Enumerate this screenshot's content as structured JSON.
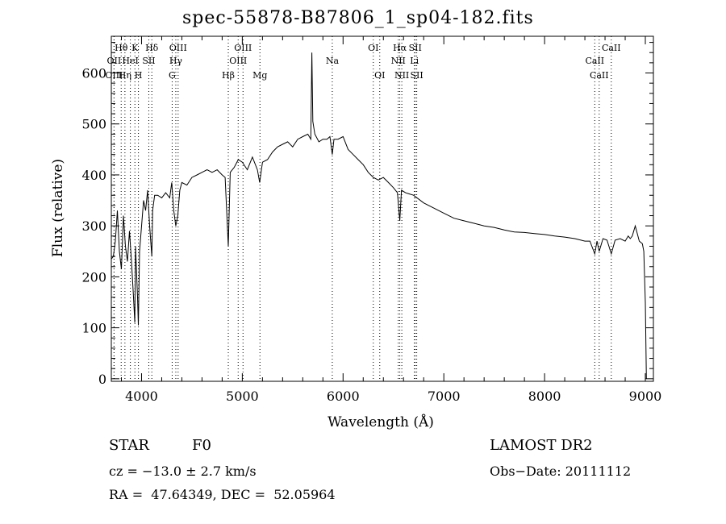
{
  "chart_data": {
    "type": "line",
    "title": "spec-55878-B87806_1_sp04-182.fits",
    "xlabel": "Wavelength (Å)",
    "ylabel": "Flux (relative)",
    "xlim": [
      3700,
      9080
    ],
    "ylim": [
      -5,
      672
    ],
    "x_ticks": [
      4000,
      5000,
      6000,
      7000,
      8000,
      9000
    ],
    "y_ticks": [
      0,
      100,
      200,
      300,
      400,
      500,
      600
    ],
    "grid": false,
    "series": [
      {
        "x": [
          3700,
          3720,
          3740,
          3760,
          3780,
          3800,
          3820,
          3840,
          3860,
          3880,
          3900,
          3920,
          3933,
          3940,
          3960,
          3968,
          3980,
          4000,
          4020,
          4040,
          4060,
          4080,
          4102,
          4110,
          4130,
          4160,
          4200,
          4240,
          4280,
          4300,
          4320,
          4340,
          4360,
          4380,
          4400,
          4450,
          4500,
          4550,
          4600,
          4650,
          4700,
          4750,
          4800,
          4830,
          4861,
          4880,
          4920,
          4960,
          5000,
          5050,
          5100,
          5150,
          5172,
          5200,
          5250,
          5300,
          5350,
          5400,
          5450,
          5500,
          5550,
          5600,
          5650,
          5680,
          5690,
          5700,
          5720,
          5760,
          5800,
          5840,
          5870,
          5893,
          5910,
          5950,
          6000,
          6050,
          6100,
          6150,
          6200,
          6250,
          6300,
          6350,
          6400,
          6450,
          6500,
          6540,
          6563,
          6580,
          6620,
          6700,
          6800,
          6900,
          7000,
          7100,
          7200,
          7300,
          7400,
          7500,
          7600,
          7700,
          7800,
          7900,
          8000,
          8100,
          8200,
          8300,
          8400,
          8450,
          8498,
          8520,
          8542,
          8580,
          8620,
          8662,
          8700,
          8750,
          8800,
          8830,
          8850,
          8870,
          8900,
          8940,
          8970,
          8985,
          9000,
          9010
        ],
        "y": [
          235,
          240,
          270,
          330,
          250,
          215,
          320,
          260,
          230,
          290,
          230,
          160,
          110,
          260,
          160,
          105,
          250,
          300,
          350,
          330,
          370,
          300,
          240,
          330,
          360,
          360,
          355,
          365,
          355,
          385,
          330,
          300,
          320,
          370,
          385,
          380,
          395,
          400,
          405,
          410,
          405,
          410,
          400,
          395,
          260,
          405,
          415,
          430,
          425,
          410,
          435,
          410,
          385,
          425,
          430,
          445,
          455,
          460,
          465,
          455,
          470,
          475,
          480,
          470,
          640,
          505,
          480,
          465,
          470,
          470,
          475,
          440,
          470,
          470,
          475,
          450,
          440,
          430,
          420,
          405,
          395,
          390,
          395,
          385,
          375,
          365,
          310,
          370,
          365,
          360,
          345,
          335,
          325,
          315,
          310,
          305,
          300,
          297,
          292,
          288,
          287,
          285,
          283,
          280,
          278,
          275,
          270,
          270,
          245,
          270,
          250,
          275,
          272,
          245,
          272,
          275,
          270,
          280,
          275,
          280,
          300,
          270,
          265,
          250,
          150,
          0
        ]
      }
    ],
    "line_markers": [
      {
        "label": "Hθ",
        "x": 3798,
        "row": 1,
        "type": "em"
      },
      {
        "label": "OII",
        "x": 3727,
        "row": 2,
        "type": "em"
      },
      {
        "label": "OIII",
        "x": 3727,
        "row": 3,
        "type": "em"
      },
      {
        "label": "Hη",
        "x": 3835,
        "row": 3,
        "type": "em"
      },
      {
        "label": "K",
        "x": 3934,
        "row": 1,
        "type": "abs"
      },
      {
        "label": "HeI",
        "x": 3889,
        "row": 2,
        "type": "em"
      },
      {
        "label": "SII",
        "x": 4072,
        "row": 2,
        "type": "em"
      },
      {
        "label": "H",
        "x": 3969,
        "row": 3,
        "type": "abs"
      },
      {
        "label": "Hδ",
        "x": 4102,
        "row": 1,
        "type": "em"
      },
      {
        "label": "OIII",
        "x": 4363,
        "row": 1,
        "type": "em"
      },
      {
        "label": "Hγ",
        "x": 4340,
        "row": 2,
        "type": "em"
      },
      {
        "label": "G",
        "x": 4304,
        "row": 3,
        "type": "abs"
      },
      {
        "label": "Hβ",
        "x": 4861,
        "row": 3,
        "type": "em"
      },
      {
        "label": "OIII",
        "x": 5007,
        "row": 1,
        "type": "em"
      },
      {
        "label": "OIII",
        "x": 4959,
        "row": 2,
        "type": "em"
      },
      {
        "label": "Mg",
        "x": 5175,
        "row": 3,
        "type": "abs"
      },
      {
        "label": "Na",
        "x": 5893,
        "row": 2,
        "type": "abs"
      },
      {
        "label": "OI",
        "x": 6300,
        "row": 1,
        "type": "em"
      },
      {
        "label": "OI",
        "x": 6364,
        "row": 3,
        "type": "em"
      },
      {
        "label": "Hα",
        "x": 6563,
        "row": 1,
        "type": "em"
      },
      {
        "label": "SII",
        "x": 6716,
        "row": 1,
        "type": "em"
      },
      {
        "label": "NII",
        "x": 6548,
        "row": 2,
        "type": "em"
      },
      {
        "label": "Li",
        "x": 6708,
        "row": 2,
        "type": "abs"
      },
      {
        "label": "NII",
        "x": 6583,
        "row": 3,
        "type": "em"
      },
      {
        "label": "SII",
        "x": 6731,
        "row": 3,
        "type": "em"
      },
      {
        "label": "CaII",
        "x": 8662,
        "row": 1,
        "type": "abs"
      },
      {
        "label": "CaII",
        "x": 8498,
        "row": 2,
        "type": "abs"
      },
      {
        "label": "CaII",
        "x": 8542,
        "row": 3,
        "type": "abs"
      }
    ]
  },
  "info": {
    "class": "STAR",
    "subclass": "F0",
    "cz": "cz = −13.0 ± 2.7 km/s",
    "coords": "RA =  47.64349, DEC =  52.05964",
    "survey": "LAMOST DR2",
    "obsdate": "Obs−Date: 20111112"
  }
}
